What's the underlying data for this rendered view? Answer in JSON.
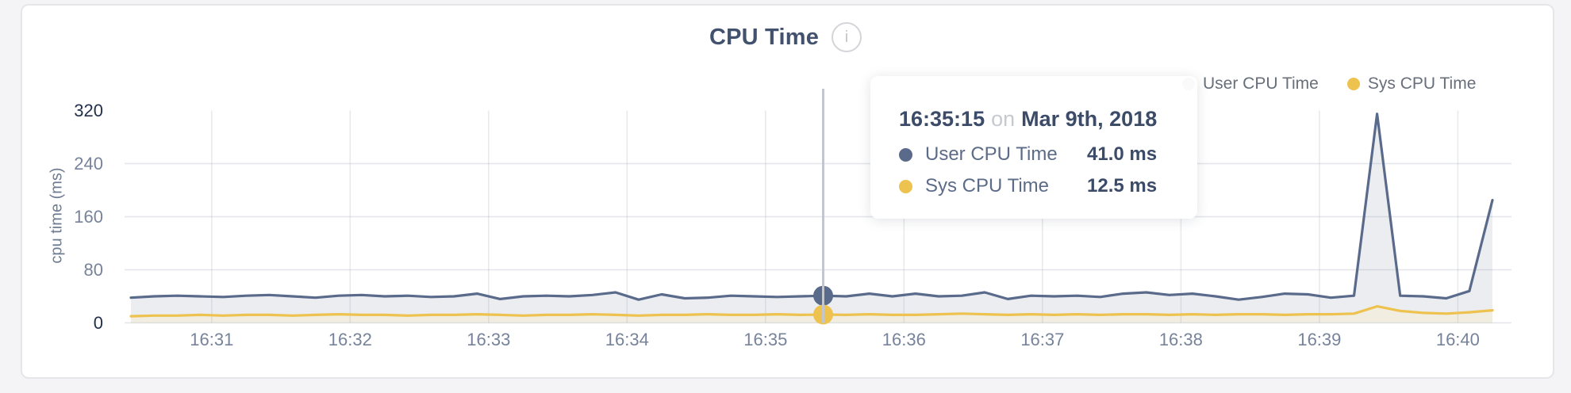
{
  "header": {
    "title": "CPU Time",
    "info_icon_glyph": "i"
  },
  "legend": {
    "items": [
      {
        "label": "User CPU Time",
        "color": "#5a6a8b"
      },
      {
        "label": "Sys CPU Time",
        "color": "#edc24f"
      }
    ]
  },
  "tooltip": {
    "time": "16:35:15",
    "connector": "on",
    "date": "Mar 9th, 2018",
    "rows": [
      {
        "label": "User CPU Time",
        "value": "41.0 ms",
        "color": "#5a6a8b"
      },
      {
        "label": "Sys CPU Time",
        "value": "12.5 ms",
        "color": "#edc24f"
      }
    ]
  },
  "chart_data": {
    "type": "area",
    "title": "CPU Time",
    "xlabel": "",
    "ylabel": "cpu time (ms)",
    "ylim": [
      0,
      320
    ],
    "y_ticks": [
      0,
      80,
      160,
      240,
      320
    ],
    "x_tick_labels": [
      "16:31",
      "16:32",
      "16:33",
      "16:34",
      "16:35",
      "16:36",
      "16:37",
      "16:38",
      "16:39",
      "16:40"
    ],
    "grid": "on",
    "legend_position": "top-right",
    "point_interval_seconds": 10,
    "hover": {
      "index": 30,
      "time_label": "16:35:15",
      "date_label": "Mar 9th, 2018",
      "user_cpu_ms": 41.0,
      "sys_cpu_ms": 12.5
    },
    "series": [
      {
        "name": "User CPU Time",
        "color": "#5a6a8b",
        "fill": "#ebedf1",
        "values": [
          38,
          40,
          41,
          40,
          39,
          41,
          42,
          40,
          38,
          41,
          42,
          40,
          41,
          39,
          40,
          44,
          36,
          40,
          41,
          40,
          42,
          46,
          35,
          43,
          37,
          38,
          41,
          40,
          39,
          40,
          41,
          40,
          44,
          40,
          44,
          40,
          41,
          46,
          36,
          41,
          40,
          41,
          39,
          44,
          46,
          42,
          44,
          40,
          35,
          39,
          44,
          43,
          38,
          41,
          315,
          41,
          40,
          37,
          48,
          185
        ]
      },
      {
        "name": "Sys CPU Time",
        "color": "#edc24f",
        "fill": "#f1ede1",
        "values": [
          10,
          11,
          11,
          12,
          11,
          12,
          12,
          11,
          12,
          13,
          12,
          12,
          11,
          12,
          12,
          13,
          12,
          11,
          12,
          12,
          13,
          12,
          11,
          12,
          12,
          13,
          12,
          12,
          13,
          12,
          12.5,
          12,
          13,
          12,
          12,
          13,
          14,
          13,
          12,
          13,
          12,
          13,
          12,
          13,
          13,
          12,
          13,
          12,
          13,
          13,
          12,
          13,
          13,
          14,
          25,
          18,
          15,
          14,
          16,
          19
        ]
      }
    ],
    "crosshair_color": "#c3c7cd",
    "gridline_color": "#9aa0ab"
  }
}
